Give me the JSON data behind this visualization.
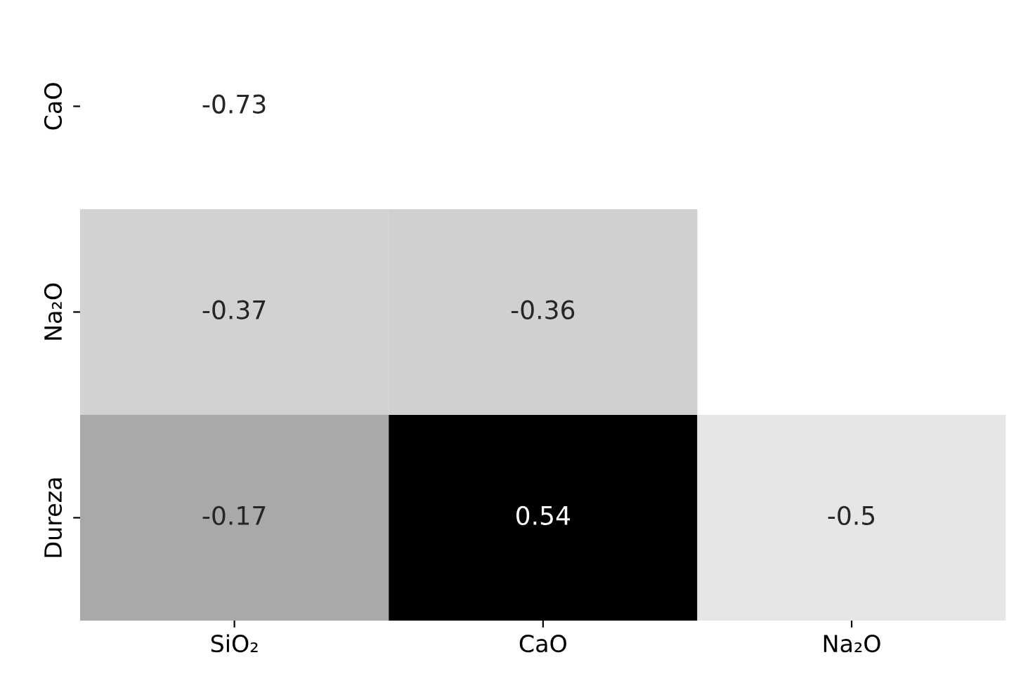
{
  "chart_data": {
    "type": "heatmap",
    "categories": [
      "SiO₂",
      "CaO",
      "Na₂O"
    ],
    "y_categories": [
      "CaO",
      "Na₂O",
      "Dureza"
    ],
    "cells": [
      [
        -0.73,
        null,
        null
      ],
      [
        -0.37,
        -0.36,
        null
      ],
      [
        -0.17,
        0.54,
        -0.5
      ]
    ],
    "data_labels": true
  }
}
